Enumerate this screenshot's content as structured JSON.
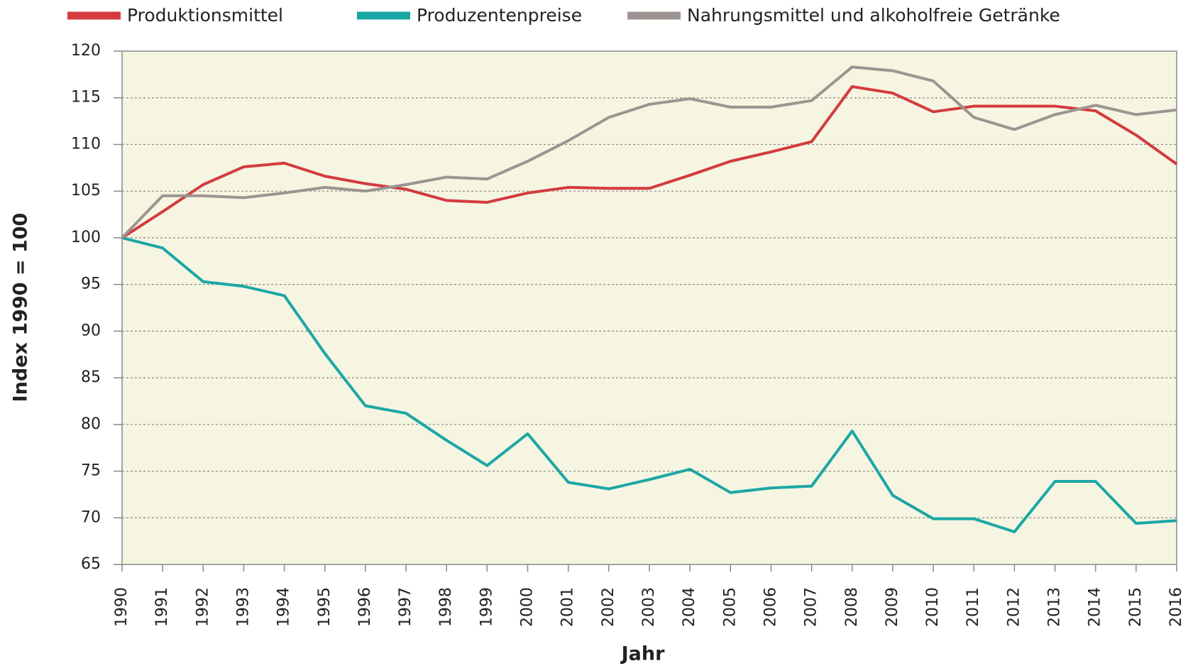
{
  "chart_data": {
    "type": "line",
    "x_label": "Jahr",
    "y_label": "Index 1990 = 100",
    "x": [
      1990,
      1991,
      1992,
      1993,
      1994,
      1995,
      1996,
      1997,
      1998,
      1999,
      2000,
      2001,
      2002,
      2003,
      2004,
      2005,
      2006,
      2007,
      2008,
      2009,
      2010,
      2011,
      2012,
      2013,
      2014,
      2015,
      2016
    ],
    "xlim": [
      1990,
      2016
    ],
    "xticks": [
      1990,
      1991,
      1992,
      1993,
      1994,
      1995,
      1996,
      1997,
      1998,
      1999,
      2000,
      2001,
      2002,
      2003,
      2004,
      2005,
      2006,
      2007,
      2008,
      2009,
      2010,
      2011,
      2012,
      2013,
      2014,
      2015,
      2016
    ],
    "ylim": [
      65,
      120
    ],
    "yticks": [
      65,
      70,
      75,
      80,
      85,
      90,
      95,
      100,
      105,
      110,
      115,
      120
    ],
    "grid": true,
    "legend": "top",
    "series": [
      {
        "name": "Produktionsmittel",
        "color": "#d33b3e",
        "values": [
          100,
          102.8,
          105.7,
          107.6,
          108.0,
          106.6,
          105.8,
          105.2,
          104.0,
          103.8,
          104.8,
          105.4,
          105.3,
          105.3,
          106.7,
          108.2,
          109.2,
          110.3,
          116.2,
          115.5,
          113.5,
          114.1,
          114.1,
          114.1,
          113.6,
          111.0,
          107.9
        ]
      },
      {
        "name": "Produzentenpreise",
        "color": "#1ba7a4",
        "values": [
          100,
          98.9,
          95.3,
          94.8,
          93.8,
          87.6,
          82.0,
          81.2,
          78.3,
          75.6,
          79.0,
          73.8,
          73.1,
          74.1,
          75.2,
          72.7,
          73.2,
          73.4,
          79.3,
          72.4,
          69.9,
          69.9,
          68.5,
          73.9,
          73.9,
          69.4,
          69.7
        ]
      },
      {
        "name": "Nahrungsmittel und alkoholfreie Getränke",
        "color": "#9d9491",
        "values": [
          100,
          104.5,
          104.5,
          104.3,
          104.8,
          105.4,
          105.0,
          105.7,
          106.5,
          106.3,
          108.2,
          110.4,
          112.9,
          114.3,
          114.9,
          114.0,
          114.0,
          114.7,
          118.3,
          117.9,
          116.8,
          112.9,
          111.6,
          113.2,
          114.2,
          113.2,
          113.7
        ]
      }
    ]
  }
}
